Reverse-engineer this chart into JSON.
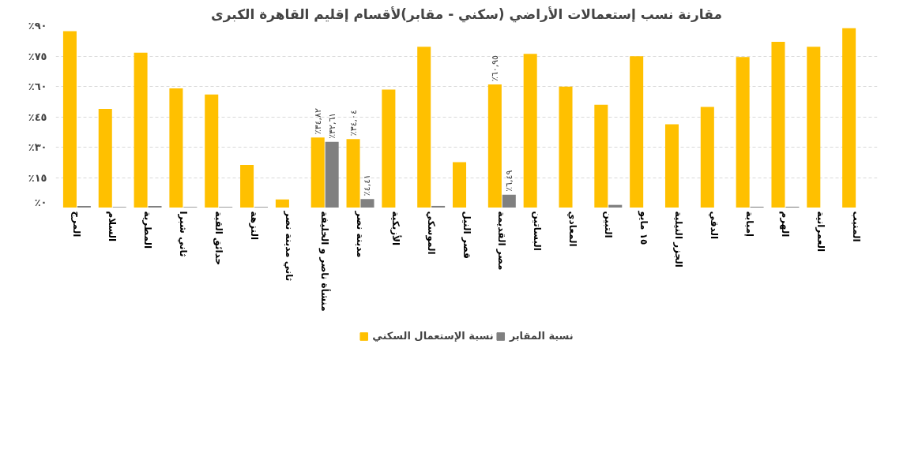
{
  "chart_data": {
    "type": "bar",
    "title": "مقارنة نسب إستعمالات الأراضي (سكني - مقابر)لأقسام إقليم القاهرة الكبرى",
    "categories": [
      "المرج",
      "السلام",
      "المطرية",
      "ثاني شبرا",
      "حدائق القبة",
      "النزهة",
      "ثاني مدينة نصر",
      "منشأة ناصر و الخليفة",
      "مدينة نصر",
      "الأزبكية",
      "الموسكي",
      "قصر النيل",
      "مصر القديمة",
      "البساتين",
      "المعادي",
      "التبين",
      "١٥ مايو",
      "الجزر النيلية",
      "الدقي",
      "إمبابة",
      "الهرم",
      "العمرانية",
      "المنيب"
    ],
    "series": [
      {
        "name": "نسبة الإستعمال السكني",
        "color": "#ffc000",
        "values": [
          87.3,
          48.9,
          76.7,
          59.0,
          56.0,
          21.2,
          4.2,
          34.82,
          34.04,
          58.4,
          79.6,
          22.6,
          60.95,
          76.1,
          59.9,
          50.9,
          74.9,
          41.3,
          49.9,
          74.5,
          82.0,
          79.6,
          88.7
        ],
        "value_labels": [
          null,
          null,
          null,
          null,
          null,
          null,
          null,
          "٪٣٤,٨٢",
          "٪٣٤,٠٤",
          null,
          null,
          null,
          "٪٦٠,٩٥",
          null,
          null,
          null,
          null,
          null,
          null,
          null,
          null,
          null,
          null
        ]
      },
      {
        "name": "نسبة المقابر",
        "color": "#808080",
        "values": [
          1.0,
          0.5,
          1.0,
          0.5,
          0.5,
          0.5,
          0,
          32.61,
          4.41,
          0,
          1.0,
          0,
          6.49,
          0,
          0,
          1.5,
          0,
          0,
          0,
          0.6,
          0.6,
          0,
          0
        ],
        "value_labels": [
          null,
          null,
          null,
          null,
          null,
          null,
          null,
          "٪٣٢,٦١",
          "٪٤,٤١",
          null,
          null,
          null,
          "٪٦,٤٩",
          null,
          null,
          null,
          null,
          null,
          null,
          null,
          null,
          null,
          null
        ]
      }
    ],
    "ylim": [
      0,
      90
    ],
    "yticks": [
      {
        "value": 0,
        "label": "٪٠"
      },
      {
        "value": 15,
        "label": "٪١٥"
      },
      {
        "value": 30,
        "label": "٪٣٠"
      },
      {
        "value": 45,
        "label": "٪٤٥"
      },
      {
        "value": 60,
        "label": "٪٦٠"
      },
      {
        "value": 75,
        "label": "٪٧٥"
      },
      {
        "value": 90,
        "label": "٪٩٠"
      }
    ],
    "grid": "y",
    "legend": "bottom"
  }
}
